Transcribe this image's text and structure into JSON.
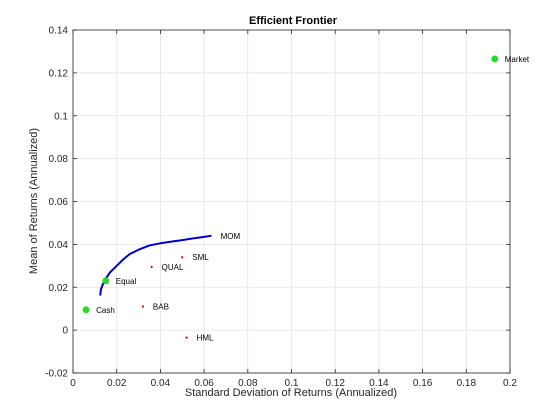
{
  "chart_data": {
    "type": "scatter",
    "title": "Efficient Frontier",
    "xlabel": "Standard Deviation of Returns (Annualized)",
    "ylabel": "Mean of Returns (Annualized)",
    "xlim": [
      0,
      0.2
    ],
    "ylim": [
      -0.02,
      0.14
    ],
    "xticks": [
      0,
      0.02,
      0.04,
      0.06,
      0.08,
      0.1,
      0.12,
      0.14,
      0.16,
      0.18,
      0.2
    ],
    "xtick_labels": [
      "0",
      "0.02",
      "0.04",
      "0.06",
      "0.08",
      "0.1",
      "0.12",
      "0.14",
      "0.16",
      "0.18",
      "0.2"
    ],
    "yticks": [
      -0.02,
      0,
      0.02,
      0.04,
      0.06,
      0.08,
      0.1,
      0.12,
      0.14
    ],
    "ytick_labels": [
      "-0.02",
      "0",
      "0.02",
      "0.04",
      "0.06",
      "0.08",
      "0.1",
      "0.12",
      "0.14"
    ],
    "grid": true,
    "frontier": {
      "color": "#0000cc",
      "x": [
        0.0125,
        0.0128,
        0.0135,
        0.015,
        0.017,
        0.02,
        0.023,
        0.026,
        0.03,
        0.035,
        0.04,
        0.045,
        0.05,
        0.055,
        0.06,
        0.063
      ],
      "y": [
        0.0165,
        0.019,
        0.021,
        0.024,
        0.027,
        0.03,
        0.033,
        0.0355,
        0.0375,
        0.0395,
        0.0405,
        0.0413,
        0.042,
        0.0428,
        0.0435,
        0.044
      ]
    },
    "points": [
      {
        "label": "MOM",
        "x": 0.063,
        "y": 0.044,
        "color": "#0000cc",
        "marker": "none"
      },
      {
        "label": "SML",
        "x": 0.05,
        "y": 0.034,
        "color": "#cc0000",
        "marker": "dot"
      },
      {
        "label": "QUAL",
        "x": 0.036,
        "y": 0.0295,
        "color": "#cc0000",
        "marker": "dot"
      },
      {
        "label": "Equal",
        "x": 0.015,
        "y": 0.023,
        "color": "#22dd22",
        "marker": "circle"
      },
      {
        "label": "BAB",
        "x": 0.032,
        "y": 0.011,
        "color": "#cc0000",
        "marker": "dot"
      },
      {
        "label": "Cash",
        "x": 0.006,
        "y": 0.0095,
        "color": "#22dd22",
        "marker": "circle"
      },
      {
        "label": "HML",
        "x": 0.052,
        "y": -0.0035,
        "color": "#cc0000",
        "marker": "dot"
      },
      {
        "label": "Market",
        "x": 0.193,
        "y": 0.1265,
        "color": "#22dd22",
        "marker": "circle"
      }
    ]
  }
}
